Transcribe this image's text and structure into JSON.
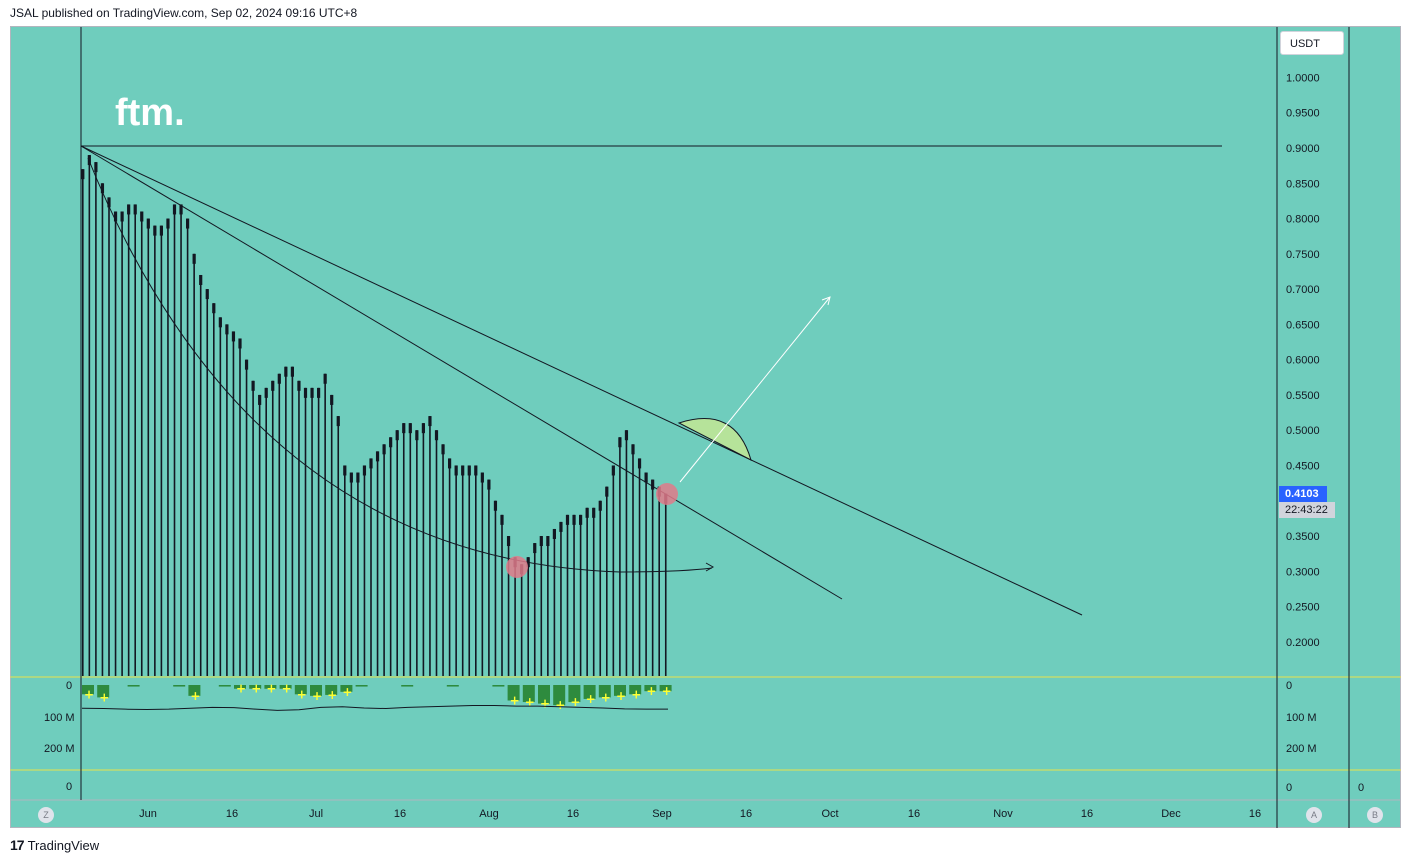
{
  "header": {
    "published": "JSAL published on TradingView.com, Sep 02, 2024 09:16 UTC+8"
  },
  "footer": {
    "brand": "TradingView",
    "logo": "17"
  },
  "symbol": {
    "ticker": "ftm.",
    "currency": "USDT"
  },
  "price_scale": {
    "ticks": [
      "1.0000",
      "0.9500",
      "0.9000",
      "0.8500",
      "0.8000",
      "0.7500",
      "0.7000",
      "0.6500",
      "0.6000",
      "0.5500",
      "0.5000",
      "0.4500",
      "0.3500",
      "0.3000",
      "0.2500",
      "0.2000"
    ],
    "last_price": "0.4103",
    "countdown": "22:43:22"
  },
  "volume_scale": {
    "ticks": [
      "0",
      "100 M",
      "200 M"
    ]
  },
  "lower_pane": {
    "left_value": "0",
    "right_value": "0",
    "right2_value": "0"
  },
  "time_axis": {
    "labels": [
      "Jun",
      "16",
      "Jul",
      "16",
      "Aug",
      "16",
      "Sep",
      "16",
      "Oct",
      "16",
      "Nov",
      "16",
      "Dec",
      "16"
    ]
  },
  "nav_buttons": {
    "left": "Z",
    "right_a": "A",
    "right_b": "B"
  },
  "colors": {
    "background": "#6fcdbd",
    "bar": "#131722",
    "volume": "#2e8b3e",
    "marker": "#ffff33",
    "circle": "#e07a8a",
    "arc": "#b6e39a",
    "price_label": "#2962ff"
  },
  "chart_data": {
    "type": "bar",
    "xlabel": "",
    "ylabel": "",
    "ylim": [
      0.15,
      1.05
    ],
    "x_range": [
      "2024-05-20",
      "2024-12-22"
    ],
    "grid": false,
    "price_bars": [
      0.87,
      0.89,
      0.88,
      0.85,
      0.83,
      0.81,
      0.81,
      0.82,
      0.82,
      0.81,
      0.8,
      0.79,
      0.79,
      0.8,
      0.82,
      0.82,
      0.8,
      0.75,
      0.72,
      0.7,
      0.68,
      0.66,
      0.65,
      0.64,
      0.63,
      0.6,
      0.57,
      0.55,
      0.56,
      0.57,
      0.58,
      0.59,
      0.59,
      0.57,
      0.56,
      0.56,
      0.56,
      0.58,
      0.55,
      0.52,
      0.45,
      0.44,
      0.44,
      0.45,
      0.46,
      0.47,
      0.48,
      0.49,
      0.5,
      0.51,
      0.51,
      0.5,
      0.51,
      0.52,
      0.5,
      0.48,
      0.46,
      0.45,
      0.45,
      0.45,
      0.45,
      0.44,
      0.43,
      0.4,
      0.38,
      0.35,
      0.32,
      0.31,
      0.32,
      0.34,
      0.35,
      0.35,
      0.36,
      0.37,
      0.38,
      0.38,
      0.38,
      0.39,
      0.39,
      0.4,
      0.42,
      0.45,
      0.49,
      0.5,
      0.48,
      0.46,
      0.44,
      0.43,
      0.42,
      0.41
    ],
    "volume_profile_M": [
      30,
      40,
      5,
      5,
      5,
      5,
      5,
      35,
      5,
      5,
      12,
      12,
      12,
      12,
      30,
      35,
      32,
      22,
      5,
      5,
      5,
      5,
      5,
      5,
      5,
      5,
      5,
      5,
      50,
      55,
      60,
      65,
      55,
      45,
      40,
      35,
      30,
      20,
      20
    ],
    "volume_ma_M": [
      75,
      76,
      78,
      79,
      78,
      75,
      72,
      73,
      78,
      82,
      80,
      72,
      70,
      74,
      76,
      72,
      70,
      68,
      66,
      66,
      68,
      68,
      70,
      72,
      74,
      77,
      78,
      78
    ],
    "lines": [
      {
        "name": "horizontal_resistance",
        "from": [
          "2024-05-21",
          0.905
        ],
        "to": [
          "2024-12-10",
          0.905
        ]
      },
      {
        "name": "upper_trendline",
        "from": [
          "2024-05-21",
          0.905
        ],
        "to": [
          "2024-11-19",
          0.24
        ]
      },
      {
        "name": "lower_trendline",
        "from": [
          "2024-05-21",
          0.905
        ],
        "to": [
          "2024-10-01",
          0.265
        ]
      },
      {
        "name": "projection_arrow",
        "from": [
          "2024-09-02",
          0.43
        ],
        "to": [
          "2024-10-01",
          0.695
        ]
      }
    ]
  }
}
